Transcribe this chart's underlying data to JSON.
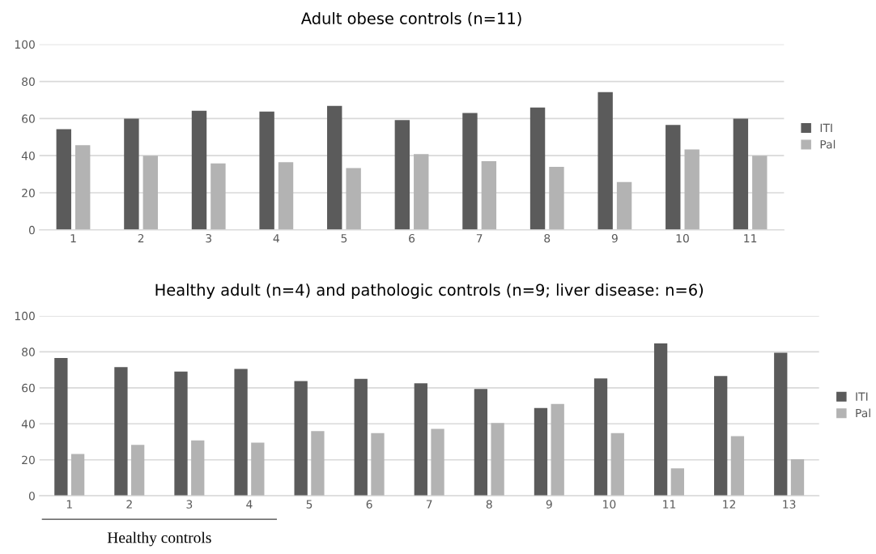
{
  "chart_data": [
    {
      "type": "bar",
      "title": "Adult obese controls (n=11)",
      "categories": [
        "1",
        "2",
        "3",
        "4",
        "5",
        "6",
        "7",
        "8",
        "9",
        "10",
        "11"
      ],
      "series": [
        {
          "name": "ITI",
          "color": "#5b5b5b",
          "values": [
            54.3,
            60,
            64.2,
            63.8,
            66.8,
            59.2,
            63,
            65.9,
            74.2,
            56.6,
            60
          ]
        },
        {
          "name": "Pal",
          "color": "#b3b3b3",
          "values": [
            45.7,
            40,
            35.8,
            36.5,
            33.3,
            40.8,
            37,
            34,
            25.8,
            43.4,
            40
          ]
        }
      ],
      "ylim": [
        0,
        100
      ],
      "yticks": [
        0,
        20,
        40,
        60,
        80,
        100
      ],
      "grid": "y",
      "legend": "right"
    },
    {
      "type": "bar",
      "title": "Healthy adult (n=4) and pathologic controls (n=9; liver disease: n=6)",
      "categories": [
        "1",
        "2",
        "3",
        "4",
        "5",
        "6",
        "7",
        "8",
        "9",
        "10",
        "11",
        "12",
        "13"
      ],
      "series": [
        {
          "name": "ITI",
          "color": "#5b5b5b",
          "values": [
            76.6,
            71.5,
            69,
            70.5,
            63.7,
            65,
            62.5,
            59.4,
            48.8,
            65.2,
            84.7,
            66.5,
            79.5
          ]
        },
        {
          "name": "Pal",
          "color": "#b3b3b3",
          "values": [
            23.2,
            28.3,
            30.8,
            29.5,
            36,
            34.8,
            37.2,
            40.4,
            51,
            34.8,
            15.3,
            33.2,
            20.3
          ]
        }
      ],
      "ylim": [
        0,
        100
      ],
      "yticks": [
        0,
        20,
        40,
        60,
        80,
        100
      ],
      "grid": "y",
      "legend": "right",
      "annotations": [
        "Healthy controls"
      ]
    }
  ]
}
